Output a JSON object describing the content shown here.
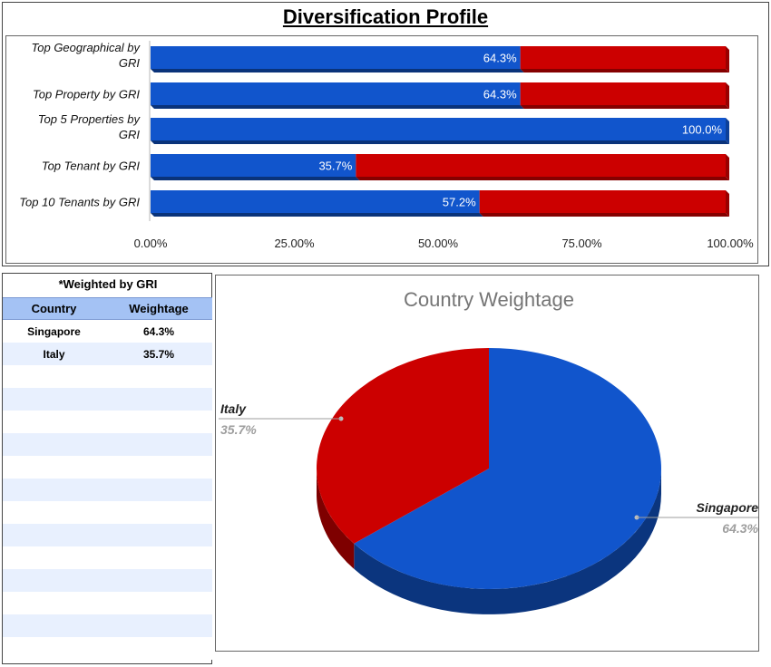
{
  "title": "Diversification Profile",
  "chart_data": [
    {
      "type": "bar",
      "orientation": "horizontal",
      "stacked": true,
      "categories": [
        [
          "Top Geographical by",
          "GRI"
        ],
        [
          "Top Property by GRI"
        ],
        [
          "Top 5 Properties by",
          "GRI"
        ],
        [
          "Top Tenant by GRI"
        ],
        [
          "Top 10 Tenants by GRI"
        ]
      ],
      "values": [
        64.3,
        64.3,
        100.0,
        35.7,
        57.2
      ],
      "value_labels": [
        "64.3%",
        "64.3%",
        "100.0%",
        "35.7%",
        "57.2%"
      ],
      "xlim": [
        0,
        100
      ],
      "x_ticks": [
        "0.00%",
        "25.00%",
        "50.00%",
        "75.00%",
        "100.00%"
      ],
      "gridlines": false,
      "colors": {
        "value": "#1155cc",
        "remainder": "#cc0000"
      }
    },
    {
      "type": "pie",
      "style": "3d",
      "title": "Country Weightage",
      "labels": [
        "Singapore",
        "Italy"
      ],
      "values": [
        64.3,
        35.7
      ],
      "value_labels": [
        "64.3%",
        "35.7%"
      ],
      "colors": [
        "#1155cc",
        "#cc0000"
      ]
    }
  ],
  "table": {
    "note": "*Weighted by GRI",
    "headers": [
      "Country",
      "Weightage"
    ],
    "rows": [
      [
        "Singapore",
        "64.3%"
      ],
      [
        "Italy",
        "35.7%"
      ]
    ]
  }
}
